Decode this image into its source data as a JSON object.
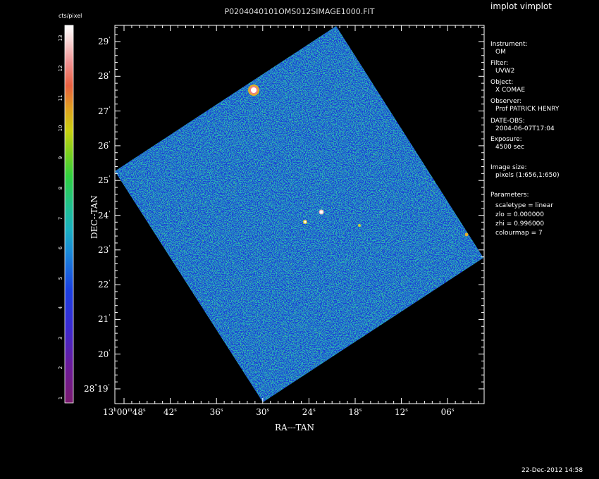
{
  "header": {
    "image_title": "P0204040101OMS012SIMAGE1000.FIT",
    "app_title": "implot vimplot"
  },
  "colorbar": {
    "unit_label": "cts/pixel",
    "ticks": [
      "1",
      "2",
      "3",
      "4",
      "5",
      "6",
      "7",
      "8",
      "9",
      "10",
      "11",
      "12",
      "13"
    ]
  },
  "axes": {
    "ylabel": "DEC--TAN",
    "xlabel": "RA---TAN",
    "dec_ticks": [
      {
        "deg": "28",
        "min": "19",
        "sep": "°",
        "sec": "'"
      },
      {
        "min": "20",
        "sec": "'"
      },
      {
        "min": "21",
        "sec": "'"
      },
      {
        "min": "22",
        "sec": "'"
      },
      {
        "min": "23",
        "sec": "'"
      },
      {
        "min": "24",
        "sec": "'"
      },
      {
        "min": "25",
        "sec": "'"
      },
      {
        "min": "26",
        "sec": "'"
      },
      {
        "min": "27",
        "sec": "'"
      },
      {
        "min": "28",
        "sec": "'"
      },
      {
        "min": "29",
        "sec": "'"
      }
    ],
    "ra_first": {
      "h": "13",
      "hs": "h",
      "m": "00",
      "ms": "m",
      "s": "48",
      "ss": "s"
    },
    "ra_ticks": [
      {
        "s": "42",
        "ss": "s"
      },
      {
        "s": "36",
        "ss": "s"
      },
      {
        "s": "30",
        "ss": "s"
      },
      {
        "s": "24",
        "ss": "s"
      },
      {
        "s": "18",
        "ss": "s"
      },
      {
        "s": "12",
        "ss": "s"
      },
      {
        "s": "06",
        "ss": "s"
      }
    ]
  },
  "info": {
    "instrument_label": "Instrument:",
    "instrument": "OM",
    "filter_label": "Filter:",
    "filter": "UVW2",
    "object_label": "Object:",
    "object": "X COMAE",
    "observer_label": "Observer:",
    "observer": "Prof PATRICK HENRY",
    "date_label": "DATE-OBS:",
    "date": "2004-06-07T17:04",
    "exposure_label": "Exposure:",
    "exposure": "4500 sec",
    "size_label": "Image size:",
    "size": "pixels (1:656,1:650)",
    "params_label": "Parameters:",
    "scaletype": "scaletype = linear",
    "zlo": "zlo = 0.000000",
    "zhi": "zhi = 0.996000",
    "colourmap": "colourmap =   7"
  },
  "footer": {
    "timestamp": "22-Dec-2012 14:58"
  },
  "colors": {
    "background": "#000000",
    "frame": "#ffffff",
    "noise_low": "#1a3fd6",
    "noise_mid": "#2ab0b8",
    "noise_high": "#7ee03a"
  }
}
